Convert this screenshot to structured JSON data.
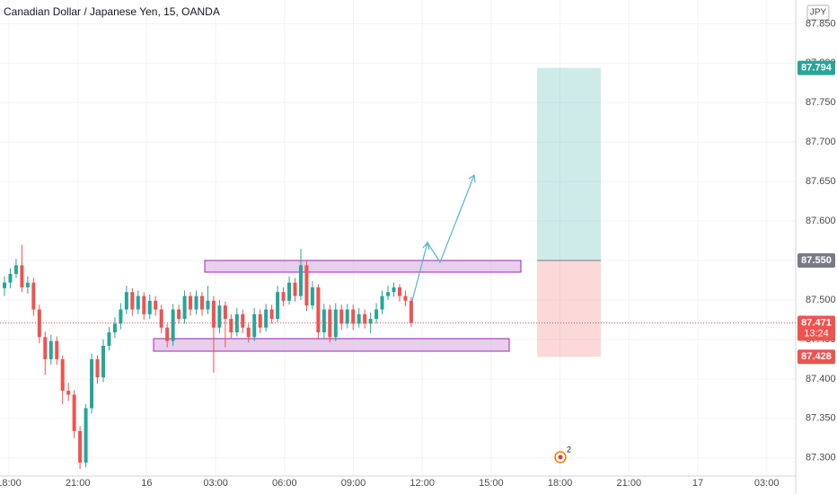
{
  "chart_data": {
    "type": "candlestick",
    "title": "Canadian Dollar / Japanese Yen, 15, OANDA",
    "currency": "JPY",
    "open": [
      87.515,
      87.522,
      87.533,
      87.544,
      87.516,
      87.522,
      87.488,
      87.453,
      87.425,
      87.448,
      87.425,
      87.385,
      87.38,
      87.334,
      87.294,
      87.363,
      87.425,
      87.402,
      87.442,
      87.459,
      87.47,
      87.488,
      87.51,
      87.488,
      87.505,
      87.482,
      87.499,
      87.488,
      87.465,
      87.448,
      87.488,
      87.476,
      87.505,
      87.488,
      87.505,
      87.488,
      87.499,
      87.465,
      87.493,
      87.476,
      87.459,
      87.482,
      87.465,
      87.453,
      87.482,
      87.465,
      87.488,
      87.476,
      87.51,
      87.499,
      87.522,
      87.505,
      87.544,
      87.493,
      87.516,
      87.459,
      87.488,
      87.453,
      87.488,
      87.47,
      87.488,
      87.47,
      87.482,
      87.47,
      87.476,
      87.488,
      87.505,
      87.51,
      87.516,
      87.505,
      87.499
    ],
    "high": [
      87.53,
      87.54,
      87.552,
      87.57,
      87.53,
      87.528,
      87.494,
      87.46,
      87.456,
      87.454,
      87.43,
      87.395,
      87.386,
      87.34,
      87.368,
      87.432,
      87.43,
      87.45,
      87.466,
      87.478,
      87.496,
      87.518,
      87.515,
      87.512,
      87.51,
      87.507,
      87.505,
      87.494,
      87.47,
      87.495,
      87.494,
      87.512,
      87.51,
      87.512,
      87.51,
      87.518,
      87.505,
      87.5,
      87.498,
      87.482,
      87.49,
      87.488,
      87.47,
      87.49,
      87.488,
      87.495,
      87.494,
      87.518,
      87.516,
      87.53,
      87.528,
      87.565,
      87.55,
      87.524,
      87.52,
      87.495,
      87.494,
      87.496,
      87.494,
      87.495,
      87.494,
      87.49,
      87.488,
      87.484,
      87.496,
      87.512,
      87.518,
      87.522,
      87.52,
      87.512,
      87.504
    ],
    "low": [
      87.505,
      87.515,
      87.528,
      87.51,
      87.508,
      87.48,
      87.445,
      87.405,
      87.418,
      87.418,
      87.368,
      87.372,
      87.325,
      87.286,
      87.288,
      87.356,
      87.394,
      87.396,
      87.436,
      87.452,
      87.463,
      87.482,
      87.48,
      87.482,
      87.475,
      87.476,
      87.48,
      87.458,
      87.44,
      87.442,
      87.47,
      87.47,
      87.48,
      87.482,
      87.48,
      87.482,
      87.408,
      87.458,
      87.44,
      87.452,
      87.454,
      87.458,
      87.446,
      87.448,
      87.458,
      87.46,
      87.47,
      87.472,
      87.492,
      87.494,
      87.498,
      87.5,
      87.486,
      87.488,
      87.45,
      87.452,
      87.446,
      87.448,
      87.462,
      87.464,
      87.462,
      87.465,
      87.464,
      87.458,
      87.47,
      87.482,
      87.5,
      87.504,
      87.498,
      87.492,
      87.466
    ],
    "close": [
      87.522,
      87.533,
      87.544,
      87.516,
      87.522,
      87.488,
      87.453,
      87.425,
      87.448,
      87.425,
      87.385,
      87.38,
      87.334,
      87.294,
      87.363,
      87.425,
      87.402,
      87.442,
      87.459,
      87.47,
      87.488,
      87.51,
      87.488,
      87.505,
      87.482,
      87.499,
      87.488,
      87.465,
      87.448,
      87.488,
      87.476,
      87.505,
      87.488,
      87.505,
      87.488,
      87.499,
      87.465,
      87.493,
      87.476,
      87.459,
      87.482,
      87.465,
      87.453,
      87.482,
      87.465,
      87.488,
      87.476,
      87.51,
      87.499,
      87.522,
      87.505,
      87.544,
      87.493,
      87.516,
      87.459,
      87.488,
      87.453,
      87.488,
      87.47,
      87.488,
      87.47,
      87.482,
      87.47,
      87.476,
      87.488,
      87.505,
      87.51,
      87.516,
      87.505,
      87.499,
      87.471
    ],
    "up_color": "#26a69a",
    "down_color": "#ef5350",
    "ylim": [
      87.277,
      87.88
    ],
    "yticks": [
      {
        "value": 87.3,
        "label": "87.300"
      },
      {
        "value": 87.35,
        "label": "87.350"
      },
      {
        "value": 87.4,
        "label": "87.400"
      },
      {
        "value": 87.45,
        "label": "87.450"
      },
      {
        "value": 87.5,
        "label": "87.500"
      },
      {
        "value": 87.55,
        "label": "87.550"
      },
      {
        "value": 87.6,
        "label": "87.600"
      },
      {
        "value": 87.65,
        "label": "87.650"
      },
      {
        "value": 87.7,
        "label": "87.700"
      },
      {
        "value": 87.75,
        "label": "87.750"
      },
      {
        "value": 87.8,
        "label": "87.800"
      },
      {
        "value": 87.85,
        "label": "87.850"
      }
    ],
    "xticks": [
      "18:00",
      "21:00",
      "16",
      "03:00",
      "06:00",
      "09:00",
      "12:00",
      "15:00",
      "18:00",
      "21:00",
      "17",
      "03:00"
    ],
    "grid": true,
    "last_price": 87.471,
    "countdown": "13:24",
    "position": {
      "target": 87.794,
      "entry": {
        "value": 87.55,
        "label": "87.550"
      },
      "stop": 87.428,
      "target_color": "#26a69a",
      "entry_color": "#787b86",
      "stop_color": "#ef5350"
    },
    "event_count": "2"
  }
}
